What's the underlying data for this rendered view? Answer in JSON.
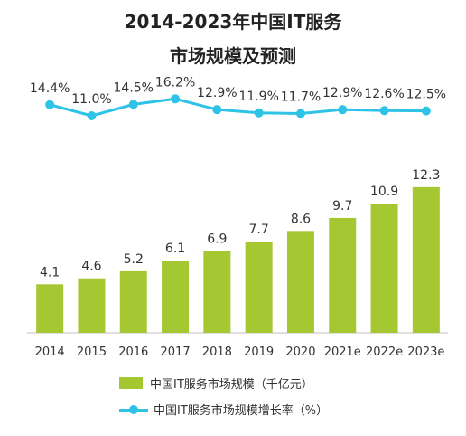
{
  "title_line1": "2014-2023年中国IT服务",
  "title_line2": "市场规模及预测",
  "colors": {
    "bar": "#a5c832",
    "line": "#2ec3e6"
  },
  "legend": {
    "bar_label": "中国IT服务市场规模（千亿元）",
    "line_label": "中国IT服务市场规模增长率（%）"
  },
  "chart_data": {
    "type": "bar+line",
    "categories": [
      "2014",
      "2015",
      "2016",
      "2017",
      "2018",
      "2019",
      "2020",
      "2021e",
      "2022e",
      "2023e"
    ],
    "series": [
      {
        "name": "中国IT服务市场规模（千亿元）",
        "type": "bar",
        "values": [
          4.1,
          4.6,
          5.2,
          6.1,
          6.9,
          7.7,
          8.6,
          9.7,
          10.9,
          12.3
        ],
        "labels": [
          "4.1",
          "4.6",
          "5.2",
          "6.1",
          "6.9",
          "7.7",
          "8.6",
          "9.7",
          "10.9",
          "12.3"
        ]
      },
      {
        "name": "中国IT服务市场规模增长率（%）",
        "type": "line",
        "values": [
          14.4,
          11.0,
          14.5,
          16.2,
          12.9,
          11.9,
          11.7,
          12.9,
          12.6,
          12.5
        ],
        "labels": [
          "14.4%",
          "11.0%",
          "14.5%",
          "16.2%",
          "12.9%",
          "11.9%",
          "11.7%",
          "12.9%",
          "12.6%",
          "12.5%"
        ]
      }
    ],
    "xlabel": "",
    "ylabel": "",
    "legend_position": "bottom",
    "grid": false
  }
}
